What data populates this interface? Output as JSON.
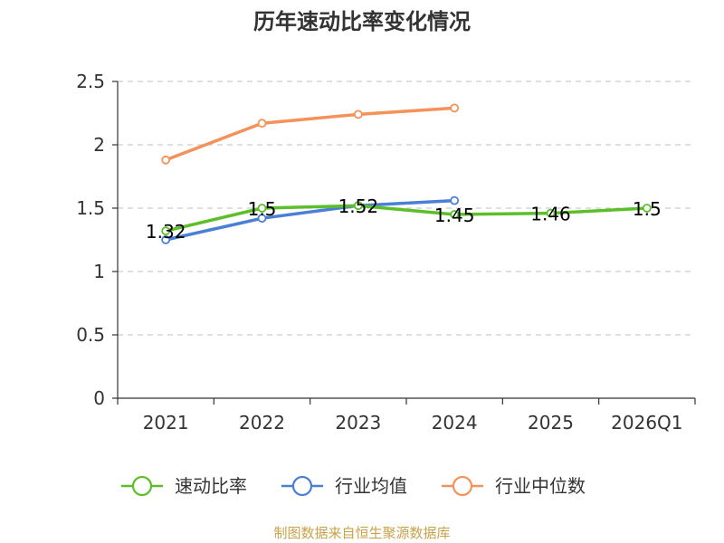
{
  "chart_data": {
    "type": "line",
    "title": "历年速动比率变化情况",
    "categories": [
      "2021",
      "2022",
      "2023",
      "2024",
      "2025",
      "2026Q1"
    ],
    "y_ticks": [
      "0",
      "0.5",
      "1",
      "1.5",
      "2",
      "2.5"
    ],
    "ylim": [
      0,
      2.5
    ],
    "grid": true,
    "legend_position": "bottom",
    "series": [
      {
        "name": "速动比率",
        "color": "#5cbf2a",
        "values": [
          1.32,
          1.5,
          1.52,
          1.45,
          1.46,
          1.5
        ],
        "labels": [
          "1.32",
          "1.5",
          "1.52",
          "1.45",
          "1.46",
          "1.5"
        ]
      },
      {
        "name": "行业均值",
        "color": "#4a7fd6",
        "values": [
          1.25,
          1.42,
          1.52,
          1.56,
          null,
          null
        ]
      },
      {
        "name": "行业中位数",
        "color": "#f4925a",
        "values": [
          1.88,
          2.17,
          2.24,
          2.29,
          null,
          null
        ]
      }
    ],
    "source": "制图数据来自恒生聚源数据库"
  }
}
